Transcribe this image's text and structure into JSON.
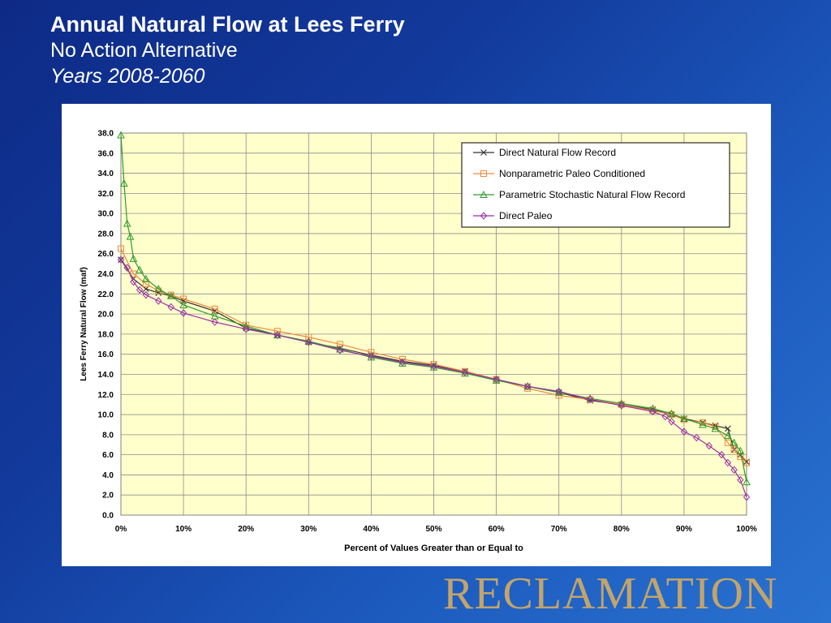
{
  "slide": {
    "title": "Annual Natural Flow at Lees Ferry",
    "subtitle": "No Action Alternative",
    "years": "Years 2008-2060",
    "logo_text": "RECLAMATION"
  },
  "colors": {
    "background": "#123a9c",
    "plot_area": "#ffffcc",
    "logo": "#c3a46a"
  },
  "chart_data": {
    "type": "line",
    "title": "",
    "xlabel": "Percent of Values Greater than or Equal to",
    "ylabel": "Lees Ferry Natural Flow (maf)",
    "xlim": [
      0,
      100
    ],
    "ylim": [
      0,
      38
    ],
    "x_ticks": [
      0,
      10,
      20,
      30,
      40,
      50,
      60,
      70,
      80,
      90,
      100
    ],
    "x_tick_labels": [
      "0%",
      "10%",
      "20%",
      "30%",
      "40%",
      "50%",
      "60%",
      "70%",
      "80%",
      "90%",
      "100%"
    ],
    "y_ticks": [
      0,
      2,
      4,
      6,
      8,
      10,
      12,
      14,
      16,
      18,
      20,
      22,
      24,
      26,
      28,
      30,
      32,
      34,
      36,
      38
    ],
    "y_tick_labels": [
      "0.0",
      "2.0",
      "4.0",
      "6.0",
      "8.0",
      "10.0",
      "12.0",
      "14.0",
      "16.0",
      "18.0",
      "20.0",
      "22.0",
      "24.0",
      "26.0",
      "28.0",
      "30.0",
      "32.0",
      "34.0",
      "36.0",
      "38.0"
    ],
    "grid": true,
    "legend_position": "top-right",
    "series": [
      {
        "name": "Direct Natural Flow Record",
        "marker": "x",
        "color": "#333333",
        "x": [
          0,
          2,
          4,
          6,
          8,
          10,
          15,
          20,
          25,
          30,
          35,
          40,
          45,
          50,
          55,
          60,
          65,
          70,
          75,
          80,
          85,
          88,
          90,
          93,
          95,
          97,
          98,
          99,
          100
        ],
        "y": [
          25.4,
          23.5,
          22.5,
          22.1,
          21.8,
          21.3,
          20.3,
          18.6,
          17.9,
          17.2,
          16.6,
          15.9,
          15.3,
          14.9,
          14.3,
          13.5,
          12.8,
          12.2,
          11.4,
          11.0,
          10.5,
          10.0,
          9.6,
          9.2,
          8.9,
          8.6,
          6.5,
          6.0,
          5.3
        ]
      },
      {
        "name": "Nonparametric Paleo Conditioned",
        "marker": "square",
        "color": "#f0883c",
        "x": [
          0,
          2,
          4,
          6,
          8,
          10,
          15,
          20,
          25,
          30,
          35,
          40,
          45,
          50,
          55,
          60,
          65,
          70,
          75,
          80,
          85,
          88,
          90,
          93,
          95,
          97,
          98,
          99,
          100
        ],
        "y": [
          26.5,
          24.0,
          23.0,
          22.3,
          21.9,
          21.5,
          20.5,
          18.9,
          18.3,
          17.7,
          17.0,
          16.2,
          15.5,
          15.0,
          14.3,
          13.5,
          12.6,
          11.9,
          11.5,
          11.0,
          10.4,
          10.0,
          9.5,
          9.2,
          8.8,
          7.2,
          6.5,
          5.8,
          5.2
        ]
      },
      {
        "name": "Parametric Stochastic Natural Flow Record",
        "marker": "triangle",
        "color": "#2f9a2f",
        "x": [
          0,
          0.5,
          1,
          1.5,
          2,
          3,
          4,
          6,
          8,
          10,
          15,
          20,
          25,
          30,
          35,
          40,
          45,
          50,
          55,
          60,
          65,
          70,
          75,
          80,
          85,
          88,
          90,
          93,
          95,
          97,
          98,
          99,
          100
        ],
        "y": [
          37.8,
          33.0,
          29.0,
          27.7,
          25.5,
          24.4,
          23.5,
          22.5,
          21.8,
          20.9,
          19.8,
          18.8,
          17.9,
          17.3,
          16.5,
          15.7,
          15.1,
          14.7,
          14.1,
          13.4,
          12.8,
          12.2,
          11.6,
          11.1,
          10.6,
          10.1,
          9.6,
          9.0,
          8.6,
          7.9,
          7.2,
          6.4,
          3.3
        ]
      },
      {
        "name": "Direct Paleo",
        "marker": "diamond",
        "color": "#9b2fa5",
        "x": [
          0,
          1,
          2,
          3,
          4,
          6,
          8,
          10,
          15,
          20,
          25,
          30,
          35,
          40,
          45,
          50,
          55,
          60,
          65,
          70,
          75,
          80,
          85,
          87,
          88,
          90,
          92,
          94,
          96,
          97,
          98,
          99,
          100
        ],
        "y": [
          25.4,
          24.6,
          23.2,
          22.4,
          21.9,
          21.3,
          20.7,
          20.1,
          19.2,
          18.5,
          17.9,
          17.2,
          16.4,
          15.8,
          15.2,
          14.8,
          14.2,
          13.5,
          12.8,
          12.3,
          11.5,
          10.9,
          10.3,
          9.8,
          9.3,
          8.3,
          7.7,
          6.9,
          6.0,
          5.2,
          4.5,
          3.5,
          1.8
        ]
      }
    ]
  }
}
